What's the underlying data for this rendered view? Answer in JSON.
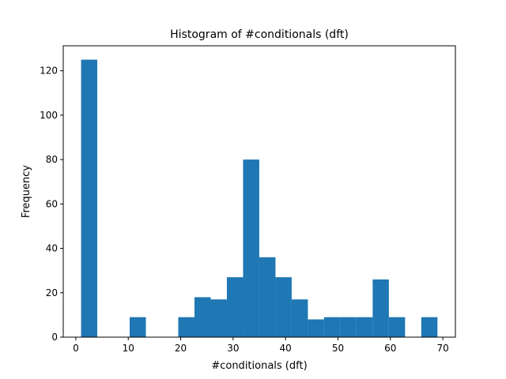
{
  "chart_data": {
    "type": "bar",
    "title": "Histogram of #conditionals (dft)",
    "xlabel": "#conditionals (dft)",
    "ylabel": "Frequency",
    "xlim": [
      -2.4,
      72.4
    ],
    "ylim": [
      0,
      131.25
    ],
    "xticks": [
      0,
      10,
      20,
      30,
      40,
      50,
      60,
      70
    ],
    "yticks": [
      0,
      20,
      40,
      60,
      80,
      100,
      120
    ],
    "bin_edges": [
      1,
      4.09,
      7.18,
      10.27,
      13.36,
      16.45,
      19.54,
      22.63,
      25.72,
      28.81,
      31.9,
      34.99,
      38.08,
      41.17,
      44.26,
      47.35,
      50.44,
      53.53,
      56.62,
      59.71,
      62.8,
      65.89,
      68.98
    ],
    "values": [
      125,
      0,
      0,
      9,
      0,
      0,
      9,
      18,
      17,
      27,
      80,
      36,
      27,
      17,
      8,
      9,
      9,
      9,
      26,
      9,
      0,
      9
    ],
    "bar_color": "#1f77b4",
    "grid": false,
    "legend": "none"
  }
}
